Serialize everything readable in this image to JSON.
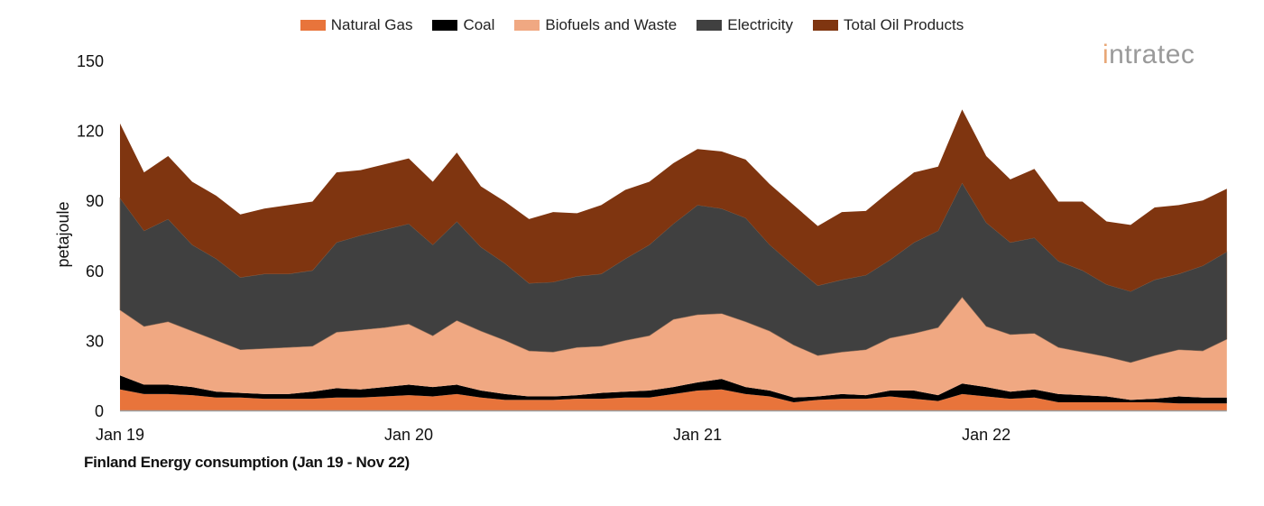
{
  "chart_data": {
    "type": "area",
    "stacked": true,
    "title": "Finland Energy consumption (Jan 19 - Nov 22)",
    "xlabel": "",
    "ylabel": "petajoule",
    "ylim": [
      0,
      150
    ],
    "yticks": [
      0,
      30,
      60,
      90,
      120,
      150
    ],
    "xtick_labels": [
      "Jan 19",
      "Jan 20",
      "Jan 21",
      "Jan 22"
    ],
    "xtick_indices": [
      0,
      12,
      24,
      36
    ],
    "grid": false,
    "legend_position": "top",
    "categories": [
      "Jan 19",
      "Feb 19",
      "Mar 19",
      "Apr 19",
      "May 19",
      "Jun 19",
      "Jul 19",
      "Aug 19",
      "Sep 19",
      "Oct 19",
      "Nov 19",
      "Dec 19",
      "Jan 20",
      "Feb 20",
      "Mar 20",
      "Apr 20",
      "May 20",
      "Jun 20",
      "Jul 20",
      "Aug 20",
      "Sep 20",
      "Oct 20",
      "Nov 20",
      "Dec 20",
      "Jan 21",
      "Feb 21",
      "Mar 21",
      "Apr 21",
      "May 21",
      "Jun 21",
      "Jul 21",
      "Aug 21",
      "Sep 21",
      "Oct 21",
      "Nov 21",
      "Dec 21",
      "Jan 22",
      "Feb 22",
      "Mar 22",
      "Apr 22",
      "May 22",
      "Jun 22",
      "Jul 22",
      "Aug 22",
      "Sep 22",
      "Oct 22",
      "Nov 22"
    ],
    "series": [
      {
        "name": "Natural Gas",
        "color": "#e8743b",
        "values": [
          9,
          7,
          7,
          6.5,
          5.5,
          5.5,
          5,
          5,
          5,
          5.5,
          5.5,
          6,
          6.5,
          6,
          7,
          5.5,
          4.5,
          4.5,
          4.5,
          5,
          5,
          5.5,
          5.5,
          7,
          8.5,
          9,
          7,
          6,
          3.5,
          4.5,
          5,
          5,
          6,
          5,
          4,
          7,
          6,
          5,
          5.5,
          3.5,
          3.5,
          3.5,
          3.5,
          3.5,
          3,
          3,
          3
        ]
      },
      {
        "name": "Coal",
        "color": "#000000",
        "values": [
          6,
          4,
          4,
          3.5,
          2.5,
          2,
          2,
          2,
          3,
          4,
          3.5,
          4,
          4.5,
          4,
          4,
          3,
          2.5,
          1.5,
          1.5,
          1.5,
          2.5,
          2.5,
          3,
          3,
          3.5,
          4.5,
          3,
          2.5,
          2,
          1.5,
          2,
          1.5,
          2.5,
          3.5,
          2.5,
          4.5,
          4,
          3,
          3.5,
          3.5,
          3,
          2.5,
          1,
          1.5,
          3,
          2.5,
          2.5
        ]
      },
      {
        "name": "Biofuels and Waste",
        "color": "#f0a882",
        "values": [
          28,
          25,
          27,
          24,
          22,
          18.5,
          19.5,
          20,
          19.5,
          24,
          25.5,
          25.5,
          26,
          22,
          27.5,
          25.5,
          23,
          19.5,
          19,
          20.5,
          20,
          22,
          23.5,
          29,
          29,
          28,
          28,
          25.5,
          22.5,
          17.5,
          18,
          19.5,
          22.5,
          24.5,
          29,
          37,
          26,
          24.5,
          24,
          20,
          18.5,
          17,
          16,
          18.5,
          20,
          20,
          25
        ]
      },
      {
        "name": "Electricity",
        "color": "#404040",
        "values": [
          48,
          41,
          44,
          37,
          35,
          31,
          32,
          31.5,
          32.5,
          38.5,
          40.5,
          42,
          43,
          39,
          42.5,
          36,
          33,
          29,
          30,
          30.5,
          31,
          35,
          39,
          41,
          47,
          45,
          44.5,
          37,
          34,
          30,
          31,
          32,
          33.5,
          39,
          41.5,
          49,
          44.5,
          39.5,
          41,
          37,
          35,
          31,
          30.5,
          32.5,
          32.5,
          36.5,
          37.5
        ]
      },
      {
        "name": "Total Oil Products",
        "color": "#7f3510",
        "values": [
          32,
          25,
          27,
          27,
          27,
          27,
          28,
          29.5,
          29.5,
          30,
          28,
          28,
          28,
          27,
          29.5,
          26,
          26.5,
          27.5,
          30,
          27,
          29.5,
          29.5,
          27,
          26,
          24,
          24.5,
          25,
          26,
          26,
          25.5,
          29,
          27.5,
          29.5,
          30,
          27.5,
          31.5,
          28.5,
          27,
          29.5,
          25.5,
          29.5,
          27,
          28.5,
          31,
          29.5,
          28,
          27
        ]
      }
    ]
  },
  "logo": {
    "text_prefix": "i",
    "text_rest": "ntratec",
    "full": "intratec"
  }
}
